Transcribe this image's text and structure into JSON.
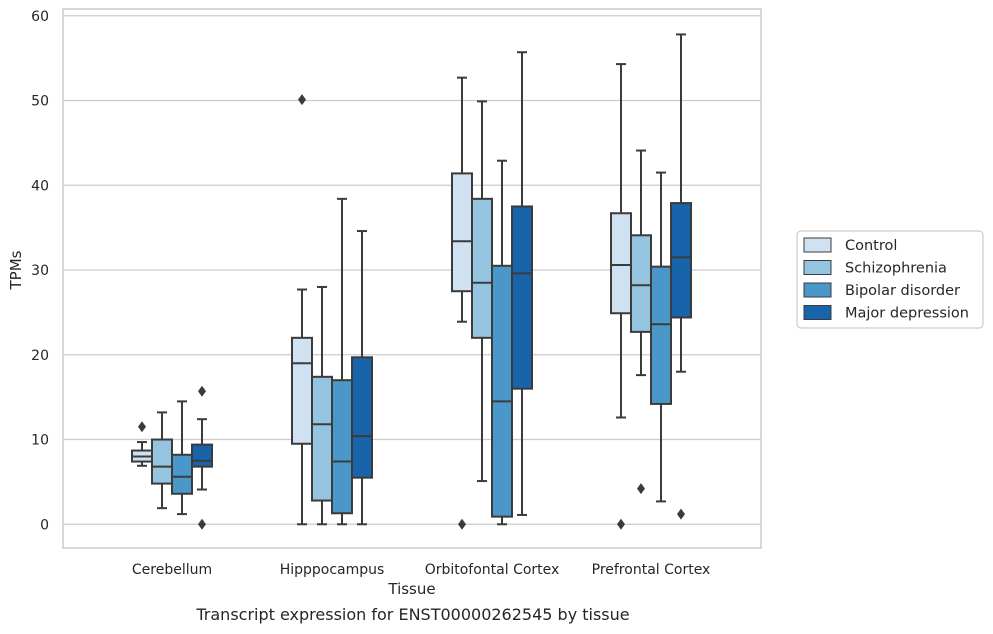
{
  "caption": "Transcript expression for ENST00000262545 by tissue",
  "chart_data": {
    "type": "box",
    "title": "",
    "xlabel": "Tissue",
    "ylabel": "TPMs",
    "ylim": [
      -2.8,
      60.8
    ],
    "yticks": [
      0,
      10,
      20,
      30,
      40,
      50,
      60
    ],
    "grid": "horizontal",
    "legend_position": "right",
    "categories": [
      "Cerebellum",
      "Hipppocampus",
      "Orbitofontal Cortex",
      "Prefrontal Cortex"
    ],
    "series": [
      {
        "name": "Control",
        "color": "#d0e1f2",
        "boxes": [
          {
            "whisker_low": 6.9,
            "q1": 7.4,
            "median": 8.0,
            "q3": 8.7,
            "whisker_high": 9.7,
            "outliers": [
              11.5
            ]
          },
          {
            "whisker_low": 0.0,
            "q1": 9.5,
            "median": 19.0,
            "q3": 22.0,
            "whisker_high": 27.7,
            "outliers": [
              50.1
            ]
          },
          {
            "whisker_low": 23.9,
            "q1": 27.5,
            "median": 33.4,
            "q3": 41.4,
            "whisker_high": 52.7,
            "outliers": [
              0.0
            ]
          },
          {
            "whisker_low": 12.6,
            "q1": 24.9,
            "median": 30.6,
            "q3": 36.7,
            "whisker_high": 54.3,
            "outliers": [
              0.0
            ]
          }
        ]
      },
      {
        "name": "Schizophrenia",
        "color": "#94c4df",
        "boxes": [
          {
            "whisker_low": 1.9,
            "q1": 4.8,
            "median": 6.8,
            "q3": 10.0,
            "whisker_high": 13.2,
            "outliers": []
          },
          {
            "whisker_low": 0.0,
            "q1": 2.8,
            "median": 11.8,
            "q3": 17.4,
            "whisker_high": 28.0,
            "outliers": []
          },
          {
            "whisker_low": 5.1,
            "q1": 22.0,
            "median": 28.5,
            "q3": 38.4,
            "whisker_high": 49.9,
            "outliers": []
          },
          {
            "whisker_low": 17.6,
            "q1": 22.7,
            "median": 28.2,
            "q3": 34.1,
            "whisker_high": 44.1,
            "outliers": [
              4.2
            ]
          }
        ]
      },
      {
        "name": "Bipolar disorder",
        "color": "#4a98c9",
        "boxes": [
          {
            "whisker_low": 1.2,
            "q1": 3.6,
            "median": 5.6,
            "q3": 8.2,
            "whisker_high": 14.5,
            "outliers": []
          },
          {
            "whisker_low": 0.0,
            "q1": 1.3,
            "median": 7.4,
            "q3": 17.0,
            "whisker_high": 38.4,
            "outliers": []
          },
          {
            "whisker_low": 0.0,
            "q1": 0.9,
            "median": 14.5,
            "q3": 30.5,
            "whisker_high": 42.9,
            "outliers": []
          },
          {
            "whisker_low": 2.7,
            "q1": 14.2,
            "median": 23.6,
            "q3": 30.4,
            "whisker_high": 41.5,
            "outliers": []
          }
        ]
      },
      {
        "name": "Major depression",
        "color": "#1764ab",
        "boxes": [
          {
            "whisker_low": 4.1,
            "q1": 6.8,
            "median": 7.5,
            "q3": 9.4,
            "whisker_high": 12.4,
            "outliers": [
              15.7,
              0.0
            ]
          },
          {
            "whisker_low": 0.0,
            "q1": 5.5,
            "median": 10.4,
            "q3": 19.7,
            "whisker_high": 34.6,
            "outliers": []
          },
          {
            "whisker_low": 1.1,
            "q1": 16.0,
            "median": 29.6,
            "q3": 37.5,
            "whisker_high": 55.7,
            "outliers": []
          },
          {
            "whisker_low": 18.0,
            "q1": 24.4,
            "median": 31.5,
            "q3": 37.9,
            "whisker_high": 57.8,
            "outliers": [
              1.2
            ]
          }
        ]
      }
    ]
  }
}
